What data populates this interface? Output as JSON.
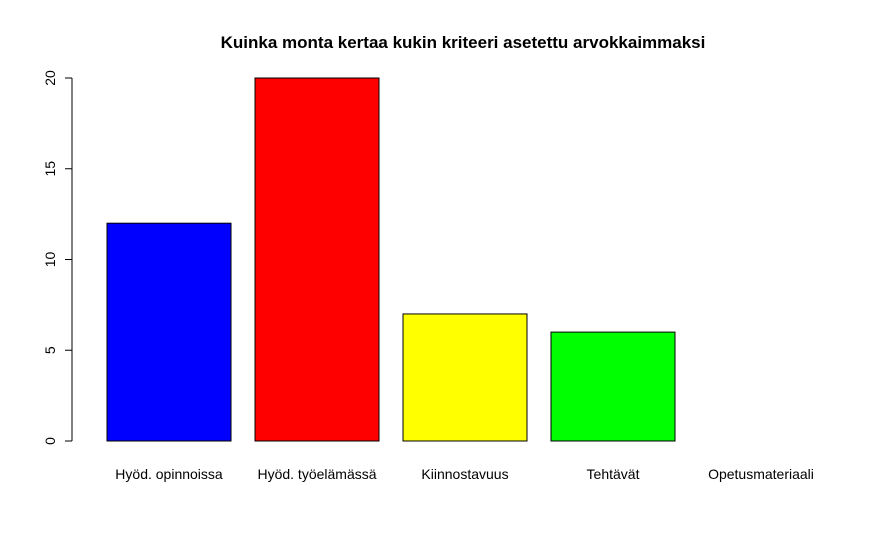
{
  "chart_data": {
    "type": "bar",
    "title": "Kuinka monta kertaa kukin kriteeri asetettu arvokkaimmaksi",
    "xlabel": "",
    "ylabel": "",
    "categories": [
      "Hyöd. opinnoissa",
      "Hyöd. työelämässä",
      "Kiinnostavuus",
      "Tehtävät",
      "Opetusmateriaali"
    ],
    "values": [
      12,
      20,
      7,
      6,
      0
    ],
    "colors": [
      "#0000ff",
      "#ff0000",
      "#ffff00",
      "#00ff00",
      "#000000"
    ],
    "ylim": [
      0,
      20
    ],
    "yticks": [
      "0",
      "5",
      "10",
      "15",
      "20"
    ],
    "grid": false,
    "legend": "none"
  }
}
